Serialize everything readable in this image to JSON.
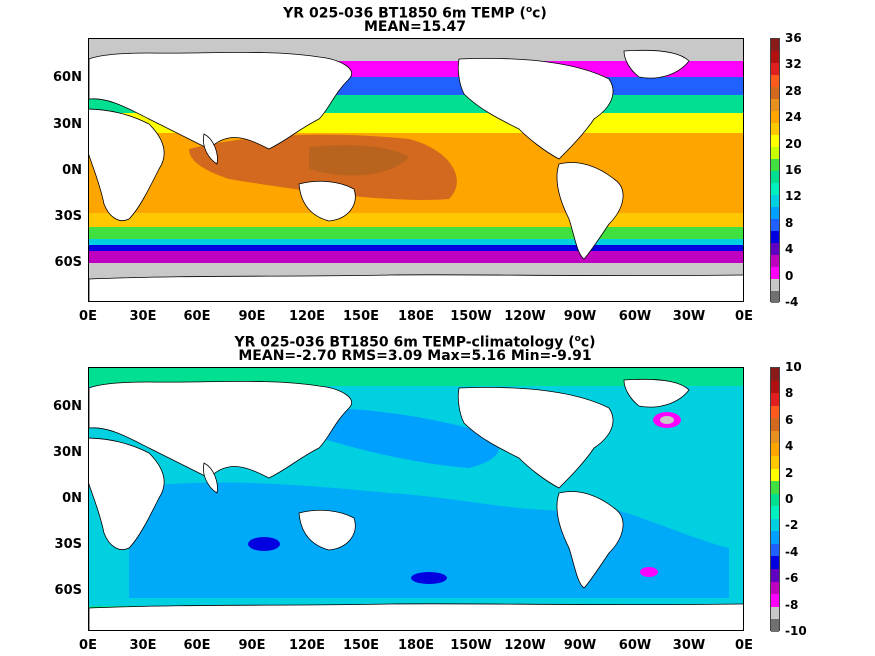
{
  "panel1": {
    "title_line1": "YR 025-036 BT1850 6m TEMP (",
    "title_sup": "o",
    "title_unit": "c)",
    "title_line2": "MEAN=15.47",
    "colorbar_labels": [
      "36",
      "32",
      "28",
      "24",
      "20",
      "16",
      "12",
      "8",
      "4",
      "0",
      "-4"
    ],
    "colorbar_colors": [
      "#8b1a1a",
      "#b01010",
      "#e02020",
      "#ff5a1e",
      "#d2691e",
      "#e89020",
      "#ffa500",
      "#ffc800",
      "#ffff00",
      "#c8ff00",
      "#40e040",
      "#00e090",
      "#00f0c0",
      "#00d0e0",
      "#00a0ff",
      "#2060ff",
      "#0000e0",
      "#6000c0",
      "#c000c0",
      "#ff00ff",
      "#c8c8c8",
      "#707070"
    ]
  },
  "panel2": {
    "title_line1": "YR 025-036 BT1850 6m TEMP-climatology (",
    "title_sup": "o",
    "title_unit": "c)",
    "title_line2": "MEAN=-2.70   RMS=3.09   Max=5.16   Min=-9.91",
    "colorbar_labels": [
      "10",
      "8",
      "6",
      "4",
      "2",
      "0",
      "-2",
      "-4",
      "-6",
      "-8",
      "-10"
    ],
    "colorbar_colors": [
      "#8b1a1a",
      "#b01010",
      "#e02020",
      "#ff5a1e",
      "#d2691e",
      "#e89020",
      "#ffa500",
      "#ffc800",
      "#ffff00",
      "#40e040",
      "#00e090",
      "#00f0c0",
      "#00d0e0",
      "#00a0ff",
      "#2060ff",
      "#0000e0",
      "#6000c0",
      "#c000c0",
      "#ff00ff",
      "#c8c8c8",
      "#707070"
    ]
  },
  "axes": {
    "lat_labels": [
      "60N",
      "30N",
      "0N",
      "30S",
      "60S"
    ],
    "lon_labels": [
      "0E",
      "30E",
      "60E",
      "90E",
      "120E",
      "150E",
      "180E",
      "150W",
      "120W",
      "90W",
      "60W",
      "30W",
      "0E"
    ]
  }
}
